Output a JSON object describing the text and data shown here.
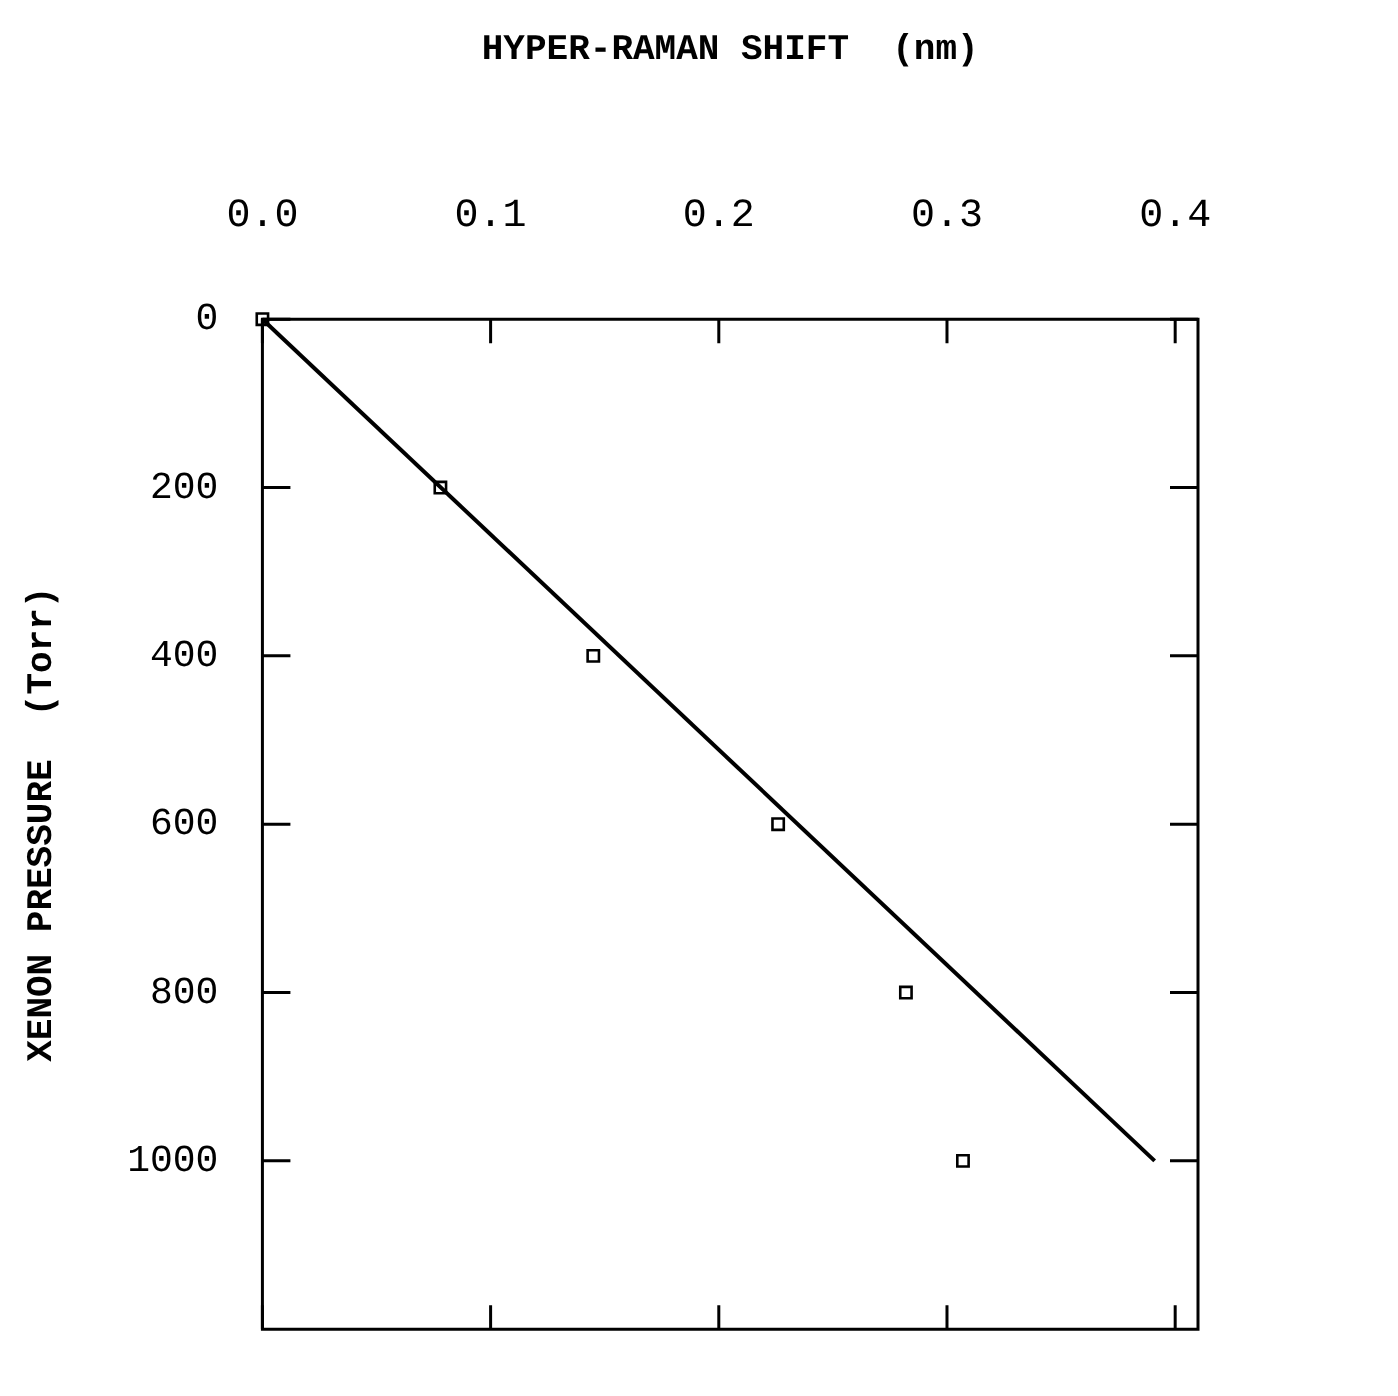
{
  "chart_data": {
    "type": "scatter",
    "xlabel": "HYPER-RAMAN SHIFT  (nm)",
    "ylabel": "XENON PRESSURE  (Torr)",
    "xlim": [
      0,
      0.41
    ],
    "xticks": [
      {
        "value": 0,
        "label": "0.0"
      },
      {
        "value": 0.1,
        "label": "0.1"
      },
      {
        "value": 0.2,
        "label": "0.2"
      },
      {
        "value": 0.3,
        "label": "0.3"
      },
      {
        "value": 0.4,
        "label": "0.4"
      }
    ],
    "ylim": [
      1200,
      0
    ],
    "yticks": [
      0,
      200,
      400,
      600,
      800,
      1000
    ],
    "marker": "square",
    "grid": false,
    "legend": false,
    "series": [
      {
        "color": "#000000",
        "x": [
          0,
          0.078,
          0.145,
          0.226,
          0.282,
          0.307
        ],
        "values": [
          0,
          200,
          400,
          600,
          800,
          1000
        ]
      },
      {
        "type": "line",
        "color": "#000000",
        "marker": "none",
        "x": [
          0,
          0.391
        ],
        "values": [
          0,
          1000
        ]
      }
    ]
  }
}
